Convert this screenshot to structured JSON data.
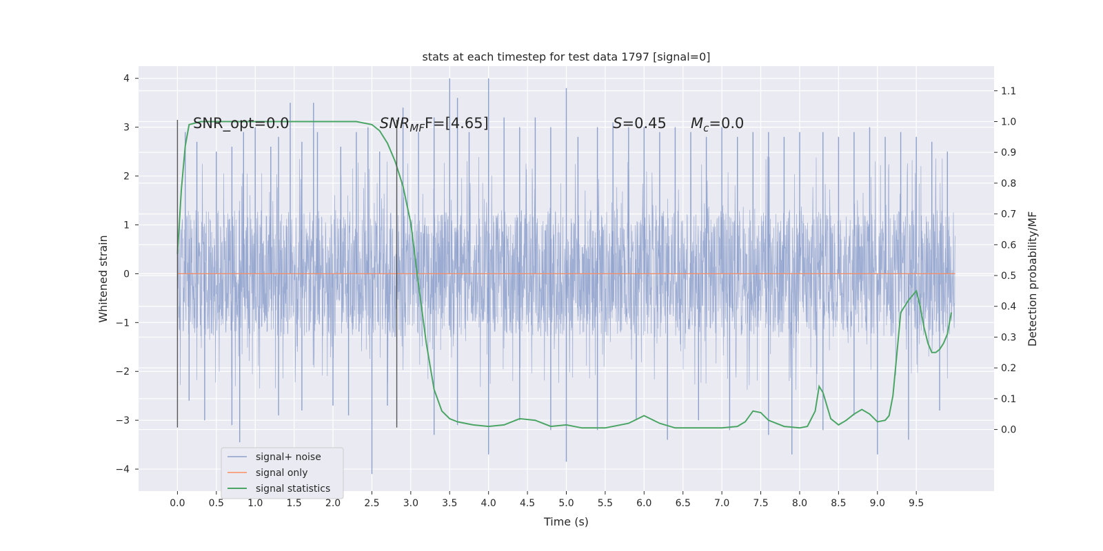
{
  "chart_data": {
    "type": "line",
    "title": "stats at each timestep for test data 1797 [signal=0]",
    "xlabel": "Time (s)",
    "ylabel_left": "Whitened strain",
    "ylabel_right": "Detection probability/MF",
    "xlim": [
      -0.5,
      10.5
    ],
    "ylim_left": [
      -4.45,
      4.25
    ],
    "ylim_right": [
      -0.2,
      1.18
    ],
    "x_ticks": [
      "0.0",
      "0.5",
      "1.0",
      "1.5",
      "2.0",
      "2.5",
      "3.0",
      "3.5",
      "4.0",
      "4.5",
      "5.0",
      "5.5",
      "6.0",
      "6.5",
      "7.0",
      "7.5",
      "8.0",
      "8.5",
      "9.0",
      "9.5"
    ],
    "x_tick_values": [
      0,
      0.5,
      1,
      1.5,
      2,
      2.5,
      3,
      3.5,
      4,
      4.5,
      5,
      5.5,
      6,
      6.5,
      7,
      7.5,
      8,
      8.5,
      9,
      9.5
    ],
    "y_ticks_left": [
      "−4",
      "−3",
      "−2",
      "−1",
      "0",
      "1",
      "2",
      "3",
      "4"
    ],
    "y_tick_values_left": [
      -4,
      -3,
      -2,
      -1,
      0,
      1,
      2,
      3,
      4
    ],
    "y_ticks_right": [
      "0.0",
      "0.1",
      "0.2",
      "0.3",
      "0.4",
      "0.5",
      "0.6",
      "0.7",
      "0.8",
      "0.9",
      "1.0",
      "1.1"
    ],
    "y_tick_values_right": [
      0,
      0.1,
      0.2,
      0.3,
      0.4,
      0.5,
      0.6,
      0.7,
      0.8,
      0.9,
      1.0,
      1.1
    ],
    "grid": true,
    "legend_position": "lower-left",
    "series": [
      {
        "name": "signal+ noise",
        "color": "#8da0cb",
        "axis": "left",
        "kind": "noise",
        "x_range": [
          0,
          10
        ],
        "typical_envelope": [
          -1.3,
          1.3
        ],
        "peaks_x": [
          0.1,
          0.25,
          0.5,
          0.7,
          0.85,
          1.0,
          1.2,
          1.3,
          1.45,
          1.6,
          1.75,
          1.8,
          2.1,
          2.3,
          2.45,
          2.6,
          2.9,
          3.1,
          3.3,
          3.5,
          3.6,
          3.75,
          4.0,
          4.2,
          4.4,
          4.6,
          4.8,
          5.0,
          5.15,
          5.4,
          5.6,
          5.8,
          6.0,
          6.2,
          6.4,
          6.6,
          6.8,
          7.0,
          7.2,
          7.4,
          7.6,
          7.8,
          8.0,
          8.3,
          8.5,
          8.7,
          8.9,
          9.1,
          9.3,
          9.5,
          9.7,
          9.9
        ],
        "peaks_y": [
          2.9,
          2.7,
          2.5,
          2.6,
          2.9,
          3.0,
          2.6,
          2.8,
          3.5,
          2.7,
          3.5,
          2.9,
          2.6,
          2.9,
          3.0,
          2.5,
          3.4,
          2.9,
          3.2,
          4.0,
          3.6,
          2.9,
          4.0,
          3.2,
          3.0,
          3.2,
          3.0,
          3.8,
          2.8,
          3.0,
          3.1,
          3.0,
          3.0,
          2.9,
          3.0,
          2.9,
          2.8,
          3.0,
          2.8,
          2.9,
          2.9,
          2.8,
          2.9,
          2.9,
          2.8,
          2.9,
          3.0,
          2.8,
          2.9,
          2.8,
          2.7,
          2.5
        ],
        "troughs_x": [
          0.15,
          0.35,
          0.7,
          0.8,
          1.3,
          1.6,
          2.0,
          2.2,
          2.5,
          2.7,
          3.3,
          3.6,
          4.0,
          4.4,
          4.8,
          5.0,
          5.4,
          5.9,
          6.3,
          6.7,
          7.1,
          7.6,
          7.9,
          8.3,
          8.7,
          9.0,
          9.4,
          9.8
        ],
        "troughs_y": [
          -2.6,
          -3.0,
          -3.1,
          -3.45,
          -2.9,
          -2.8,
          -2.7,
          -2.9,
          -4.1,
          -2.7,
          -3.3,
          -3.1,
          -3.7,
          -3.0,
          -3.2,
          -3.85,
          -3.2,
          -3.0,
          -3.4,
          -3.0,
          -3.2,
          -3.3,
          -3.7,
          -3.2,
          -2.9,
          -3.7,
          -3.4,
          -2.8
        ]
      },
      {
        "name": "signal only",
        "color": "#fc8d62",
        "axis": "left",
        "x": [
          0,
          10
        ],
        "y": [
          0,
          0
        ]
      },
      {
        "name": "signal statistics",
        "color": "#4aa564",
        "axis": "right",
        "x": [
          0,
          0.05,
          0.1,
          0.15,
          0.3,
          0.5,
          1.0,
          1.5,
          2.0,
          2.3,
          2.5,
          2.6,
          2.7,
          2.8,
          2.9,
          3.0,
          3.1,
          3.2,
          3.3,
          3.4,
          3.5,
          3.6,
          3.8,
          4.0,
          4.2,
          4.4,
          4.6,
          4.8,
          5.0,
          5.2,
          5.5,
          5.8,
          6.0,
          6.2,
          6.4,
          6.6,
          6.8,
          7.0,
          7.2,
          7.3,
          7.4,
          7.5,
          7.6,
          7.8,
          8.0,
          8.1,
          8.2,
          8.25,
          8.3,
          8.4,
          8.5,
          8.6,
          8.7,
          8.8,
          8.9,
          9.0,
          9.1,
          9.15,
          9.2,
          9.3,
          9.4,
          9.5,
          9.55,
          9.6,
          9.65,
          9.7,
          9.75,
          9.8,
          9.85,
          9.9,
          9.95
        ],
        "y": [
          0.57,
          0.78,
          0.92,
          0.99,
          1.0,
          1.0,
          1.0,
          1.0,
          1.0,
          1.0,
          0.99,
          0.97,
          0.93,
          0.87,
          0.79,
          0.67,
          0.47,
          0.28,
          0.13,
          0.06,
          0.035,
          0.025,
          0.015,
          0.01,
          0.015,
          0.035,
          0.03,
          0.01,
          0.015,
          0.005,
          0.005,
          0.02,
          0.045,
          0.02,
          0.005,
          0.005,
          0.005,
          0.005,
          0.01,
          0.025,
          0.06,
          0.055,
          0.03,
          0.01,
          0.005,
          0.01,
          0.06,
          0.14,
          0.12,
          0.035,
          0.015,
          0.03,
          0.05,
          0.065,
          0.05,
          0.025,
          0.03,
          0.045,
          0.11,
          0.38,
          0.42,
          0.45,
          0.4,
          0.33,
          0.28,
          0.25,
          0.25,
          0.26,
          0.28,
          0.31,
          0.38
        ]
      }
    ],
    "vlines": [
      {
        "x": 0.0,
        "ymin": -3.15,
        "ymax": 3.15,
        "color": "#555555"
      },
      {
        "x": 2.82,
        "ymin": -3.15,
        "ymax": 3.15,
        "color": "#555555"
      }
    ],
    "annotations": [
      {
        "text": "SNR_opt=0.0",
        "x": 0.2,
        "y": 3.15
      },
      {
        "base": "SNR",
        "sub": "MF",
        "rest": "F=[4.65]",
        "x": 2.6,
        "y": 3.15
      },
      {
        "base": "S",
        "sub": "",
        "rest": "=0.45",
        "x": 5.6,
        "y": 3.15
      },
      {
        "base": "M",
        "sub": "c",
        "rest": "=0.0",
        "x": 6.6,
        "y": 3.15
      }
    ]
  }
}
